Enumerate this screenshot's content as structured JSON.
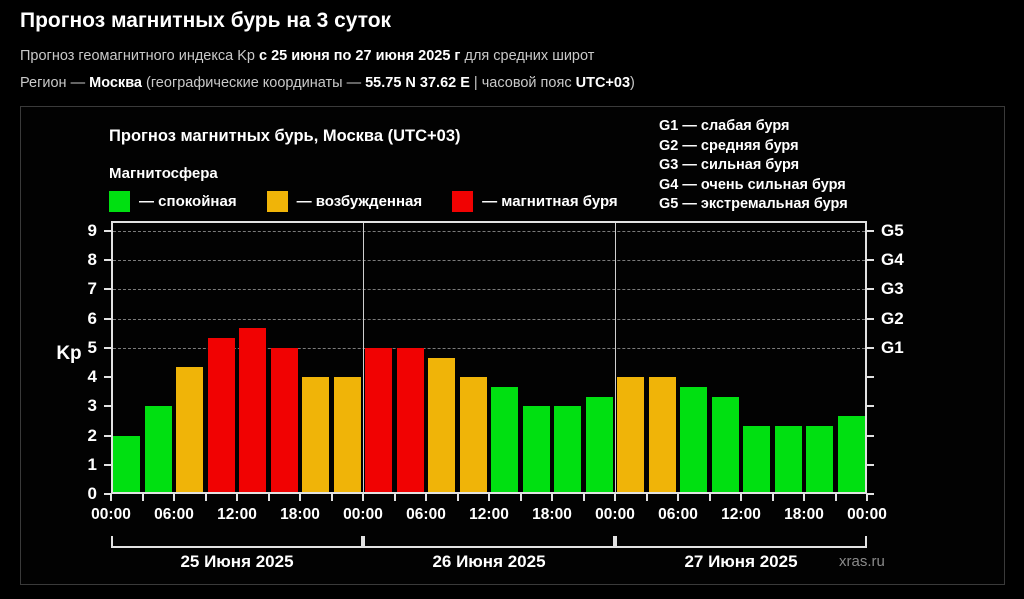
{
  "header": {
    "title": "Прогноз магнитных бурь на 3 суток",
    "line1_parts": [
      {
        "text": "Прогноз геомагнитного индекса Kp "
      },
      {
        "text": "с 25 июня по 27 июня 2025 г",
        "bold": true
      },
      {
        "text": " для средних широт"
      }
    ],
    "line2_parts": [
      {
        "text": "Регион — "
      },
      {
        "text": "Москва",
        "bold": true
      },
      {
        "text": " (географические координаты — "
      },
      {
        "text": "55.75 N 37.62 E",
        "bold": true
      },
      {
        "text": " | часовой пояс "
      },
      {
        "text": "UTC+03",
        "bold": true
      },
      {
        "text": ")"
      }
    ]
  },
  "panel": {
    "chart_title": "Прогноз магнитных бурь, Москва (UTC+03)",
    "legend_title": "Магнитосфера",
    "legend": [
      {
        "key": "quiet",
        "label": "— спокойная",
        "color": "#00e011"
      },
      {
        "key": "excited",
        "label": "— возбужденная",
        "color": "#f0b408"
      },
      {
        "key": "storm",
        "label": "— магнитная буря",
        "color": "#f10202"
      }
    ],
    "g_legend": [
      "G1 — слабая буря",
      "G2 — средняя буря",
      "G3 — сильная буря",
      "G4 — очень сильная буря",
      "G5 — экстремальная буря"
    ],
    "watermark": "xras.ru"
  },
  "chart_data": {
    "type": "bar",
    "title": "Прогноз магнитных бурь, Москва (UTC+03)",
    "ylabel": "Kp",
    "ylim": [
      0,
      9.4
    ],
    "yticks": [
      0,
      1,
      2,
      3,
      4,
      5,
      6,
      7,
      8,
      9
    ],
    "right_axis_ticks": [
      {
        "kp": 5,
        "label": "G1"
      },
      {
        "kp": 6,
        "label": "G2"
      },
      {
        "kp": 7,
        "label": "G3"
      },
      {
        "kp": 8,
        "label": "G4"
      },
      {
        "kp": 9,
        "label": "G5"
      }
    ],
    "gridlines_at": [
      5,
      6,
      7,
      8,
      9
    ],
    "grid": "dashed",
    "bar_interval_hours": 3,
    "x_tick_labels": [
      "00:00",
      "06:00",
      "12:00",
      "18:00",
      "00:00",
      "06:00",
      "12:00",
      "18:00",
      "00:00",
      "06:00",
      "12:00",
      "18:00",
      "00:00"
    ],
    "days": [
      {
        "date": "25 Июня 2025",
        "values": [
          2,
          3,
          4.33,
          5.33,
          5.67,
          5,
          4,
          4
        ]
      },
      {
        "date": "26 Июня 2025",
        "values": [
          5,
          5,
          4.67,
          4,
          3.67,
          3,
          3,
          3.33
        ]
      },
      {
        "date": "27 Июня 2025",
        "values": [
          4,
          4,
          3.67,
          3.33,
          2.33,
          2.33,
          2.33,
          2.67
        ]
      }
    ],
    "thresholds": {
      "excited": 4,
      "storm": 5
    },
    "colors": {
      "quiet": "#00e011",
      "excited": "#f0b408",
      "storm": "#f10202",
      "axis": "#e2e2e2",
      "grid": "#9a9a9a",
      "day_separator": "#cfcfcf"
    }
  }
}
